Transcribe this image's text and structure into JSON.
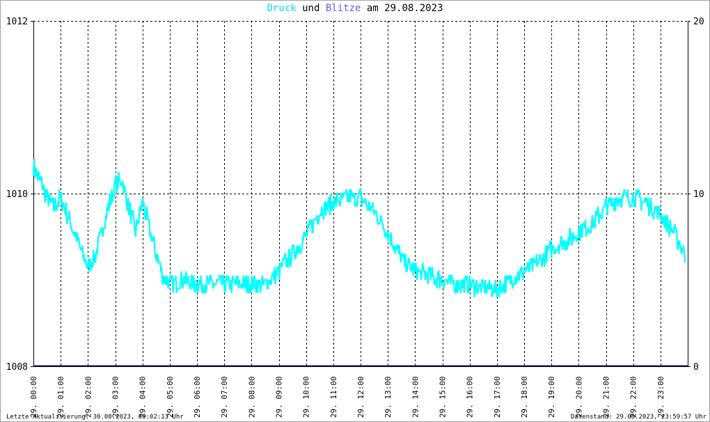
{
  "title": {
    "series1": "Druck",
    "word_und": "und",
    "series2": "Blitze",
    "word_am": "am",
    "date": "29.08.2023"
  },
  "footer": {
    "left": "Letzte Aktualisierung: 30.08.2023, 00:02:13 Uhr",
    "right": "Datenstand: 29.08.2023, 23:59:57 Uhr"
  },
  "colors": {
    "druck": "#00ffff",
    "blitze": "#1a1a6e",
    "title_druck": "#00e0e0",
    "title_blitze": "#6060e0",
    "grid": "#000000"
  },
  "chart_data": {
    "type": "line",
    "x_label_prefix": "29.",
    "x_ticks": [
      "00:00",
      "01:00",
      "02:00",
      "03:00",
      "04:00",
      "05:00",
      "06:00",
      "07:00",
      "08:00",
      "09:00",
      "10:00",
      "11:00",
      "12:00",
      "13:00",
      "14:00",
      "15:00",
      "16:00",
      "17:00",
      "18:00",
      "19:00",
      "20:00",
      "21:00",
      "22:00",
      "23:00"
    ],
    "xlim": [
      0,
      24
    ],
    "y_left": {
      "ticks": [
        "1008",
        "1010",
        "1012"
      ],
      "lim": [
        1008,
        1012
      ]
    },
    "y_right": {
      "ticks": [
        "0",
        "10",
        "20"
      ],
      "lim": [
        0,
        20
      ]
    },
    "grid": true,
    "series": [
      {
        "name": "Druck",
        "axis": "left",
        "x": [
          0,
          0.25,
          0.5,
          0.75,
          1,
          1.25,
          1.5,
          1.75,
          2,
          2.25,
          2.5,
          2.75,
          3,
          3.25,
          3.5,
          3.75,
          4,
          4.25,
          4.5,
          4.75,
          5,
          5.5,
          6,
          6.5,
          7,
          7.5,
          8,
          8.5,
          9,
          9.5,
          10,
          10.5,
          11,
          11.5,
          12,
          12.5,
          13,
          13.5,
          14,
          14.5,
          15,
          15.5,
          16,
          16.5,
          17,
          17.5,
          18,
          18.5,
          19,
          19.5,
          20,
          20.5,
          21,
          21.5,
          22,
          22.5,
          23,
          23.5,
          23.9
        ],
        "y": [
          1010.3,
          1010.15,
          1009.95,
          1009.85,
          1009.95,
          1009.75,
          1009.55,
          1009.35,
          1009.15,
          1009.25,
          1009.55,
          1009.85,
          1010.1,
          1010.15,
          1009.85,
          1009.55,
          1009.9,
          1009.6,
          1009.3,
          1009.05,
          1008.95,
          1009.0,
          1008.95,
          1008.95,
          1008.95,
          1008.95,
          1008.95,
          1008.95,
          1009.1,
          1009.3,
          1009.5,
          1009.8,
          1009.9,
          1009.95,
          1009.95,
          1009.8,
          1009.55,
          1009.25,
          1009.1,
          1009.05,
          1009.0,
          1008.95,
          1008.95,
          1008.9,
          1008.9,
          1009.0,
          1009.1,
          1009.2,
          1009.35,
          1009.45,
          1009.55,
          1009.65,
          1009.85,
          1009.95,
          1009.95,
          1009.9,
          1009.75,
          1009.55,
          1009.3
        ]
      },
      {
        "name": "Blitze",
        "axis": "right",
        "x": [
          0,
          24
        ],
        "y": [
          0,
          0
        ]
      }
    ]
  }
}
